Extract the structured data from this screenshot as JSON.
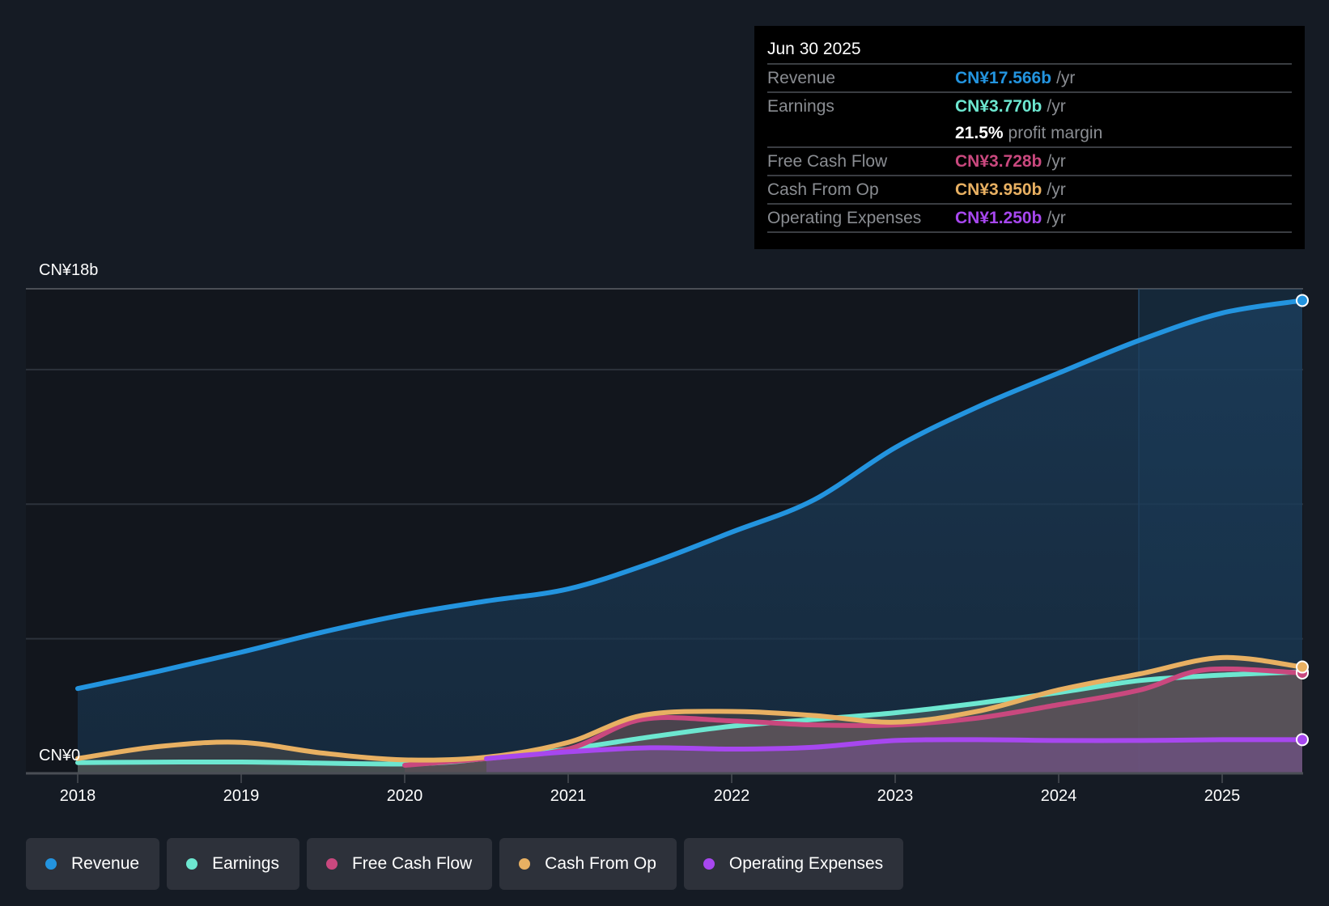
{
  "tooltip": {
    "date": "Jun 30 2025",
    "rows": [
      {
        "label": "Revenue",
        "value": "CN¥17.566b",
        "unit": "/yr",
        "color": "#2394df"
      },
      {
        "label": "Earnings",
        "value": "CN¥3.770b",
        "unit": "/yr",
        "color": "#6de7d0"
      },
      {
        "label": "",
        "value": "21.5%",
        "unit": "profit margin",
        "color": "#ffffff"
      },
      {
        "label": "Free Cash Flow",
        "value": "CN¥3.728b",
        "unit": "/yr",
        "color": "#c9487e"
      },
      {
        "label": "Cash From Op",
        "value": "CN¥3.950b",
        "unit": "/yr",
        "color": "#e8b062"
      },
      {
        "label": "Operating Expenses",
        "value": "CN¥1.250b",
        "unit": "/yr",
        "color": "#a747ef"
      }
    ]
  },
  "legend": [
    {
      "label": "Revenue",
      "color": "#2394df"
    },
    {
      "label": "Earnings",
      "color": "#6de7d0"
    },
    {
      "label": "Free Cash Flow",
      "color": "#c9487e"
    },
    {
      "label": "Cash From Op",
      "color": "#e8b062"
    },
    {
      "label": "Operating Expenses",
      "color": "#a747ef"
    }
  ],
  "chart_data": {
    "type": "area",
    "title": "",
    "xlabel": "",
    "ylabel": "",
    "ylim": [
      0,
      18
    ],
    "xlim": [
      2018.0,
      2025.49
    ],
    "y_ticks": [
      {
        "value": 0,
        "label": "CN¥0"
      },
      {
        "value": 18,
        "label": "CN¥18b"
      }
    ],
    "gridlines": [
      5,
      10,
      15
    ],
    "x_ticks": [
      {
        "value": 2018,
        "label": "2018"
      },
      {
        "value": 2019,
        "label": "2019"
      },
      {
        "value": 2020,
        "label": "2020"
      },
      {
        "value": 2021,
        "label": "2021"
      },
      {
        "value": 2022,
        "label": "2022"
      },
      {
        "value": 2023,
        "label": "2023"
      },
      {
        "value": 2024,
        "label": "2024"
      },
      {
        "value": 2025,
        "label": "2025"
      }
    ],
    "highlight_from": 2024.49,
    "series": [
      {
        "name": "Revenue",
        "color": "#2394df",
        "unit": "CN¥b",
        "x": [
          2018.0,
          2018.5,
          2019.0,
          2019.5,
          2020.0,
          2020.5,
          2021.0,
          2021.5,
          2022.0,
          2022.5,
          2023.0,
          2023.5,
          2024.0,
          2024.5,
          2025.0,
          2025.49
        ],
        "values": [
          3.15,
          3.8,
          4.5,
          5.25,
          5.9,
          6.4,
          6.85,
          7.8,
          8.96,
          10.15,
          12.1,
          13.6,
          14.87,
          16.1,
          17.1,
          17.566
        ]
      },
      {
        "name": "Earnings",
        "color": "#6de7d0",
        "unit": "CN¥b",
        "x": [
          2018.0,
          2019.0,
          2020.0,
          2020.5,
          2021.0,
          2021.5,
          2022.0,
          2022.5,
          2023.0,
          2023.5,
          2024.0,
          2024.5,
          2025.0,
          2025.49
        ],
        "values": [
          0.4,
          0.42,
          0.35,
          0.55,
          0.9,
          1.35,
          1.75,
          2.0,
          2.25,
          2.6,
          3.0,
          3.45,
          3.65,
          3.77
        ]
      },
      {
        "name": "Free Cash Flow",
        "color": "#c9487e",
        "unit": "CN¥b",
        "x": [
          2020.0,
          2020.5,
          2021.0,
          2021.45,
          2022.0,
          2022.5,
          2023.0,
          2023.5,
          2024.0,
          2024.5,
          2024.9,
          2025.49
        ],
        "values": [
          0.3,
          0.55,
          0.9,
          2.0,
          1.95,
          1.8,
          1.8,
          2.05,
          2.55,
          3.1,
          3.85,
          3.728
        ]
      },
      {
        "name": "Cash From Op",
        "color": "#e8b062",
        "unit": "CN¥b",
        "x": [
          2018.0,
          2018.5,
          2019.0,
          2019.5,
          2020.0,
          2020.5,
          2021.0,
          2021.45,
          2022.0,
          2022.5,
          2023.0,
          2023.5,
          2024.0,
          2024.5,
          2025.0,
          2025.49
        ],
        "values": [
          0.55,
          1.0,
          1.15,
          0.75,
          0.5,
          0.6,
          1.15,
          2.15,
          2.3,
          2.15,
          1.9,
          2.3,
          3.1,
          3.7,
          4.3,
          3.95
        ]
      },
      {
        "name": "Operating Expenses",
        "color": "#a747ef",
        "unit": "CN¥b",
        "x": [
          2020.5,
          2021.0,
          2021.5,
          2022.0,
          2022.5,
          2023.0,
          2023.5,
          2024.0,
          2024.5,
          2025.0,
          2025.49
        ],
        "values": [
          0.55,
          0.8,
          0.95,
          0.9,
          0.97,
          1.22,
          1.25,
          1.22,
          1.22,
          1.25,
          1.25
        ]
      }
    ]
  }
}
